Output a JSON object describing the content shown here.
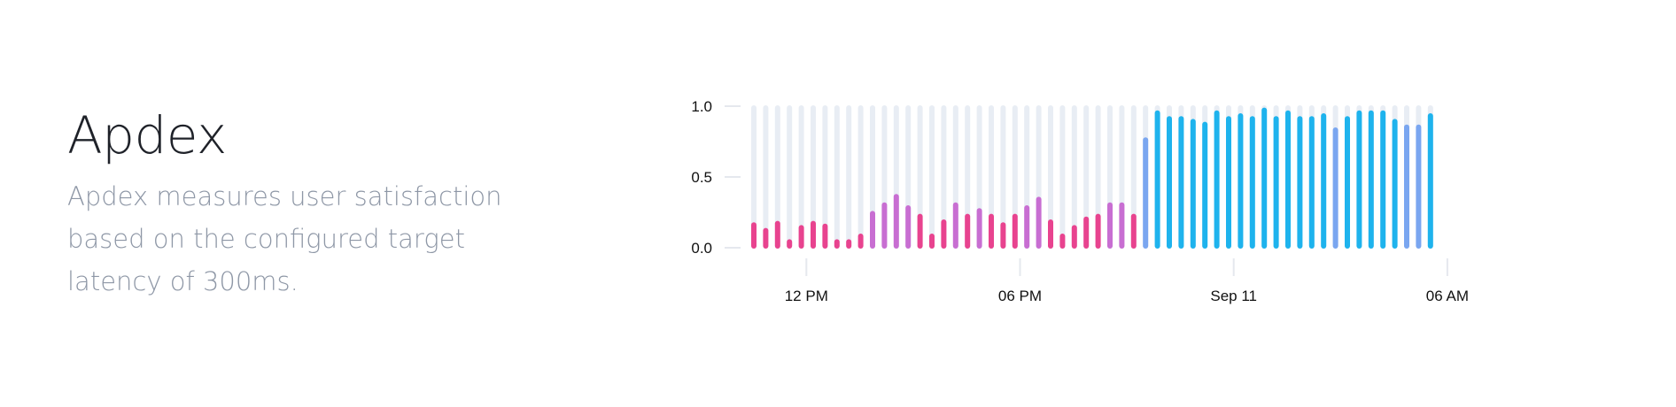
{
  "header": {
    "title": "Apdex",
    "description": "Apdex measures user satisfaction based on the configured target latency of 300ms."
  },
  "colors": {
    "track": "#e8edf4",
    "low": "#e8438f",
    "mid": "#c86ed2",
    "upper": "#7aa6f0",
    "high": "#1eb3ed",
    "axis": "#e5e8ee",
    "label": "#111111"
  },
  "chart_data": {
    "type": "bar",
    "title": "",
    "xlabel": "",
    "ylabel": "",
    "ylim": [
      0,
      1
    ],
    "yticks": [
      "1.0",
      "0.5",
      "0.0"
    ],
    "yticks_values": [
      1.0,
      0.5,
      0.0
    ],
    "xticks": [
      {
        "label": "12 PM",
        "index": 5
      },
      {
        "label": "06 PM",
        "index": 23
      },
      {
        "label": "Sep 11",
        "index": 41
      },
      {
        "label": "06 AM",
        "index": 59
      }
    ],
    "series": [
      {
        "values": [
          0.18,
          0.14,
          0.19,
          0.06,
          0.16,
          0.19,
          0.17,
          0.06,
          0.06,
          0.1,
          0.26,
          0.32,
          0.38,
          0.3,
          0.24,
          0.1,
          0.2,
          0.32,
          0.24,
          0.28,
          0.24,
          0.18,
          0.24,
          0.3,
          0.36,
          0.2,
          0.1,
          0.16,
          0.22,
          0.24,
          0.32,
          0.32,
          0.24,
          0.78,
          0.97,
          0.93,
          0.93,
          0.91,
          0.89,
          0.97,
          0.93,
          0.95,
          0.93,
          0.99,
          0.93,
          0.97,
          0.93,
          0.93,
          0.95,
          0.85,
          0.93,
          0.97,
          0.97,
          0.97,
          0.91,
          0.87,
          0.87,
          0.95
        ]
      }
    ]
  }
}
